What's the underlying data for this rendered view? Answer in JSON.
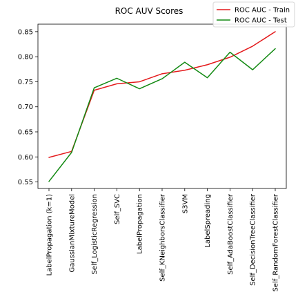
{
  "chart_data": {
    "type": "line",
    "title": "ROC AUV Scores",
    "xlabel": "",
    "ylabel": "",
    "categories": [
      "LabelPropagation (k=1)",
      "GaussianMixtureModel",
      "Self_LogisticRegression",
      "Self_SVC",
      "LabelPropagation",
      "Self_KNeighborsClassifier",
      "S3VM",
      "LabelSpreading",
      "Self_AdaBoostClassifier",
      "Self_DecisionTreeClassifier",
      "Self_RandomForestClassifier"
    ],
    "series": [
      {
        "name": "ROC AUC - Train",
        "color": "#e41a1c",
        "values": [
          0.599,
          0.611,
          0.733,
          0.746,
          0.75,
          0.766,
          0.773,
          0.784,
          0.799,
          0.821,
          0.85
        ]
      },
      {
        "name": "ROC AUC - Test",
        "color": "#138a13",
        "values": [
          0.551,
          0.609,
          0.738,
          0.757,
          0.736,
          0.756,
          0.789,
          0.758,
          0.809,
          0.774,
          0.816
        ]
      }
    ],
    "ylim": [
      0.537,
      0.865
    ],
    "yticks": [
      0.55,
      0.6,
      0.65,
      0.7,
      0.75,
      0.8,
      0.85
    ],
    "ytick_labels": [
      "0.55",
      "0.60",
      "0.65",
      "0.70",
      "0.75",
      "0.80",
      "0.85"
    ],
    "grid": false,
    "legend_position": "top-right"
  }
}
